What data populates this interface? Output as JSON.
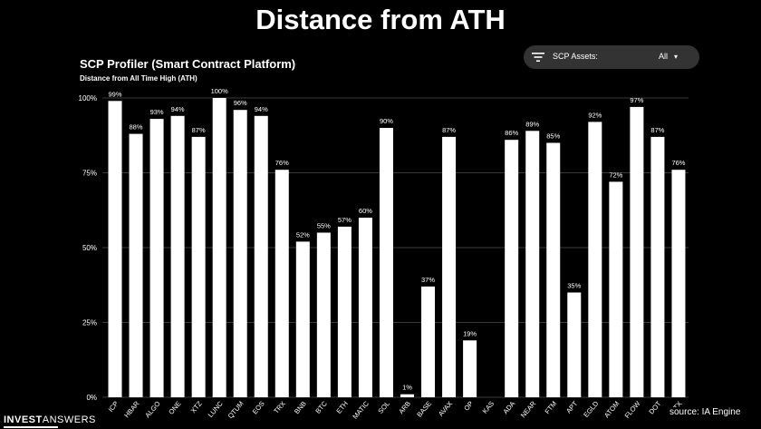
{
  "header": {
    "title": "Distance from ATH"
  },
  "panel": {
    "title": "SCP Profiler (Smart Contract Platform)",
    "subtitle": "Distance from All Time High (ATH)"
  },
  "filter": {
    "icon": "filter-icon",
    "label": "SCP Assets:",
    "value": "All",
    "caret": "▾"
  },
  "footer": {
    "brand_bold": "INVEST",
    "brand_light": "ANSWERS",
    "source": "source: IA Engine"
  },
  "colors": {
    "background": "#000000",
    "bar": "#ffffff",
    "grid": "#3a3a3a",
    "pill": "#333333"
  },
  "chart_data": {
    "type": "bar",
    "categories": [
      "ICP",
      "HBAR",
      "ALGO",
      "ONE",
      "XTZ",
      "LUNC",
      "QTUM",
      "EOS",
      "TRX",
      "BNB",
      "BTC",
      "ETH",
      "MATIC",
      "SOL",
      "ARB",
      "BASE",
      "AVAX",
      "OP",
      "KAS",
      "ADA",
      "NEAR",
      "FTM",
      "APT",
      "EGLD",
      "ATOM",
      "FLOW",
      "DOT",
      "STX"
    ],
    "values": [
      99,
      88,
      93,
      94,
      87,
      100,
      96,
      94,
      76,
      52,
      55,
      57,
      60,
      90,
      1,
      37,
      87,
      19,
      0,
      86,
      89,
      85,
      35,
      92,
      72,
      97,
      87,
      76
    ],
    "data_labels": [
      "99%",
      "88%",
      "93%",
      "94%",
      "87%",
      "100%",
      "96%",
      "94%",
      "76%",
      "52%",
      "55%",
      "57%",
      "60%",
      "90%",
      "1%",
      "37%",
      "87%",
      "19%",
      "",
      "86%",
      "89%",
      "85%",
      "35%",
      "92%",
      "72%",
      "97%",
      "87%",
      "76%"
    ],
    "yticks": [
      0,
      25,
      50,
      75,
      100
    ],
    "ytick_labels": [
      "0%",
      "25%",
      "50%",
      "75%",
      "100%"
    ],
    "ylim": [
      0,
      100
    ],
    "title": "SCP Profiler (Smart Contract Platform)",
    "subtitle": "Distance from All Time High (ATH)",
    "xlabel": "",
    "ylabel": "",
    "grid": true,
    "legend": "none"
  }
}
